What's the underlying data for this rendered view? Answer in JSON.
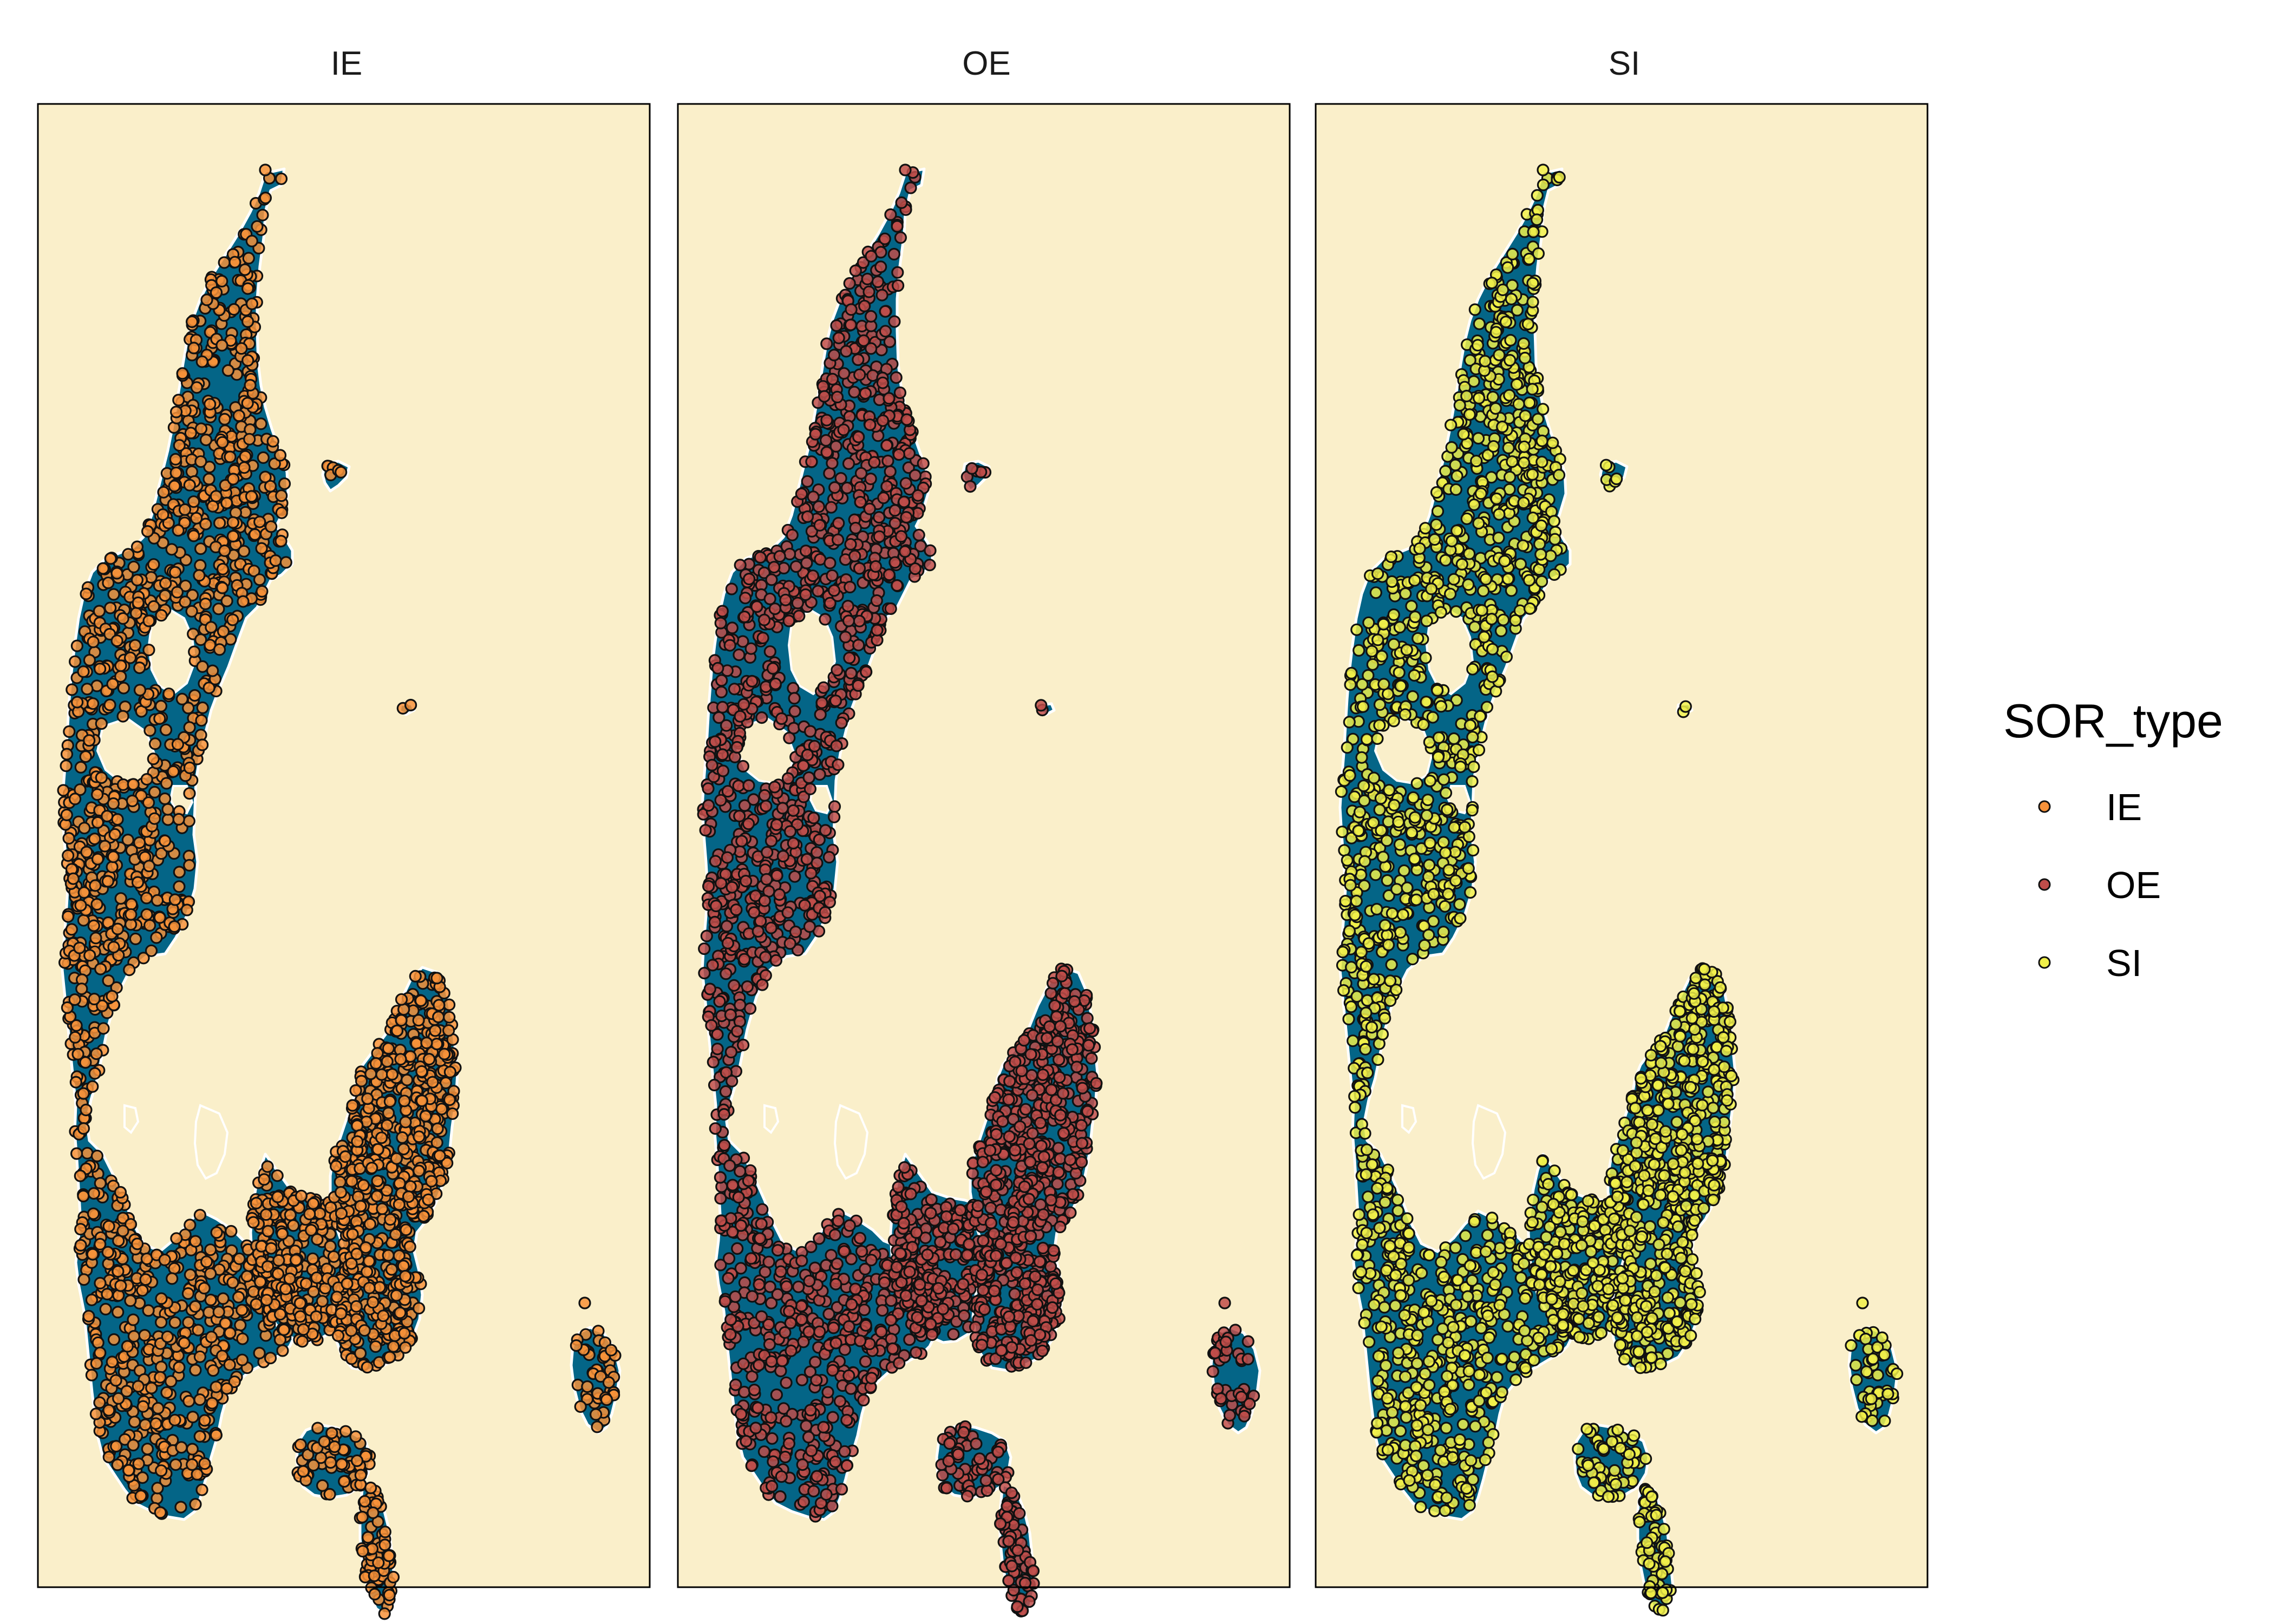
{
  "figure": {
    "background_color": "#ffffff",
    "panel_background_color": "#faefca",
    "land_color": "#046587",
    "coast_outline_color": "#ffffff",
    "point_outline_color": "#111111",
    "point_fill_opacity": 0.85
  },
  "panels": [
    {
      "title": "IE",
      "type": "IE",
      "color": "#f7923a"
    },
    {
      "title": "OE",
      "type": "OE",
      "color": "#bf4d4a"
    },
    {
      "title": "SI",
      "type": "SI",
      "color": "#f1f04a"
    }
  ],
  "legend": {
    "title": "SOR_type",
    "items": [
      {
        "label": "IE",
        "color": "#f7923a"
      },
      {
        "label": "OE",
        "color": "#bf4d4a"
      },
      {
        "label": "SI",
        "color": "#f1f04a"
      }
    ]
  },
  "chart_data": {
    "type": "scatter",
    "map": "Denmark",
    "facet_variable": "SOR_type",
    "facets": [
      "IE",
      "OE",
      "SI"
    ],
    "axes_shown": false,
    "grid": false,
    "legend_position": "right",
    "series": [
      {
        "name": "IE",
        "facet": "IE",
        "color": "#f7923a"
      },
      {
        "name": "OE",
        "facet": "OE",
        "color": "#bf4d4a"
      },
      {
        "name": "SI",
        "facet": "SI",
        "color": "#f1f04a"
      }
    ]
  }
}
